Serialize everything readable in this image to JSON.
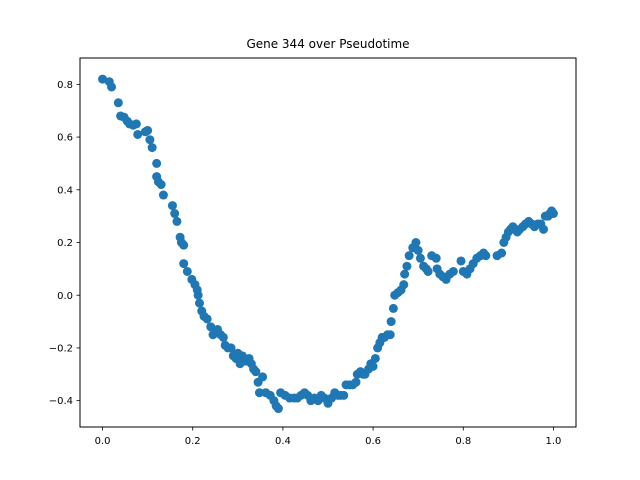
{
  "chart_data": {
    "type": "scatter",
    "title": "Gene 344 over Pseudotime",
    "xlabel": "",
    "ylabel": "",
    "xlim": [
      -0.05,
      1.05
    ],
    "ylim": [
      -0.5,
      0.9
    ],
    "xticks": [
      0.0,
      0.2,
      0.4,
      0.6,
      0.8,
      1.0
    ],
    "xtick_labels": [
      "0.0",
      "0.2",
      "0.4",
      "0.6",
      "0.8",
      "1.0"
    ],
    "yticks": [
      -0.4,
      -0.2,
      0.0,
      0.2,
      0.4,
      0.6,
      0.8
    ],
    "ytick_labels": [
      "−0.4",
      "−0.2",
      "0.0",
      "0.2",
      "0.4",
      "0.6",
      "0.8"
    ],
    "grid": false,
    "legend": "none",
    "marker_color": "#1f77b4",
    "series": [
      {
        "points": [
          [
            0.0,
            0.82
          ],
          [
            0.015,
            0.81
          ],
          [
            0.02,
            0.79
          ],
          [
            0.035,
            0.73
          ],
          [
            0.04,
            0.68
          ],
          [
            0.048,
            0.675
          ],
          [
            0.055,
            0.66
          ],
          [
            0.06,
            0.65
          ],
          [
            0.068,
            0.645
          ],
          [
            0.075,
            0.65
          ],
          [
            0.078,
            0.61
          ],
          [
            0.095,
            0.62
          ],
          [
            0.1,
            0.625
          ],
          [
            0.105,
            0.59
          ],
          [
            0.11,
            0.56
          ],
          [
            0.12,
            0.5
          ],
          [
            0.12,
            0.45
          ],
          [
            0.124,
            0.43
          ],
          [
            0.13,
            0.42
          ],
          [
            0.135,
            0.38
          ],
          [
            0.155,
            0.34
          ],
          [
            0.16,
            0.31
          ],
          [
            0.165,
            0.28
          ],
          [
            0.172,
            0.22
          ],
          [
            0.175,
            0.2
          ],
          [
            0.18,
            0.19
          ],
          [
            0.18,
            0.12
          ],
          [
            0.188,
            0.09
          ],
          [
            0.198,
            0.06
          ],
          [
            0.205,
            0.04
          ],
          [
            0.21,
            0.02
          ],
          [
            0.212,
            0.0
          ],
          [
            0.215,
            -0.03
          ],
          [
            0.22,
            -0.06
          ],
          [
            0.225,
            -0.08
          ],
          [
            0.232,
            -0.09
          ],
          [
            0.24,
            -0.12
          ],
          [
            0.245,
            -0.15
          ],
          [
            0.25,
            -0.14
          ],
          [
            0.255,
            -0.13
          ],
          [
            0.262,
            -0.15
          ],
          [
            0.268,
            -0.16
          ],
          [
            0.272,
            -0.19
          ],
          [
            0.278,
            -0.2
          ],
          [
            0.285,
            -0.2
          ],
          [
            0.29,
            -0.23
          ],
          [
            0.296,
            -0.24
          ],
          [
            0.3,
            -0.22
          ],
          [
            0.305,
            -0.26
          ],
          [
            0.31,
            -0.23
          ],
          [
            0.318,
            -0.25
          ],
          [
            0.325,
            -0.24
          ],
          [
            0.33,
            -0.26
          ],
          [
            0.335,
            -0.28
          ],
          [
            0.34,
            -0.29
          ],
          [
            0.345,
            -0.33
          ],
          [
            0.348,
            -0.37
          ],
          [
            0.355,
            -0.31
          ],
          [
            0.362,
            -0.37
          ],
          [
            0.372,
            -0.38
          ],
          [
            0.38,
            -0.4
          ],
          [
            0.385,
            -0.42
          ],
          [
            0.39,
            -0.43
          ],
          [
            0.395,
            -0.37
          ],
          [
            0.405,
            -0.38
          ],
          [
            0.415,
            -0.39
          ],
          [
            0.425,
            -0.39
          ],
          [
            0.432,
            -0.39
          ],
          [
            0.44,
            -0.38
          ],
          [
            0.448,
            -0.37
          ],
          [
            0.455,
            -0.38
          ],
          [
            0.462,
            -0.4
          ],
          [
            0.47,
            -0.39
          ],
          [
            0.478,
            -0.4
          ],
          [
            0.485,
            -0.38
          ],
          [
            0.492,
            -0.39
          ],
          [
            0.5,
            -0.41
          ],
          [
            0.508,
            -0.39
          ],
          [
            0.515,
            -0.37
          ],
          [
            0.522,
            -0.38
          ],
          [
            0.528,
            -0.38
          ],
          [
            0.535,
            -0.38
          ],
          [
            0.54,
            -0.34
          ],
          [
            0.548,
            -0.34
          ],
          [
            0.555,
            -0.34
          ],
          [
            0.562,
            -0.33
          ],
          [
            0.565,
            -0.3
          ],
          [
            0.572,
            -0.29
          ],
          [
            0.578,
            -0.3
          ],
          [
            0.582,
            -0.3
          ],
          [
            0.59,
            -0.28
          ],
          [
            0.595,
            -0.26
          ],
          [
            0.6,
            -0.27
          ],
          [
            0.605,
            -0.24
          ],
          [
            0.61,
            -0.2
          ],
          [
            0.615,
            -0.18
          ],
          [
            0.62,
            -0.16
          ],
          [
            0.625,
            -0.16
          ],
          [
            0.632,
            -0.15
          ],
          [
            0.638,
            -0.15
          ],
          [
            0.64,
            -0.1
          ],
          [
            0.645,
            -0.05
          ],
          [
            0.648,
            0.0
          ],
          [
            0.655,
            0.01
          ],
          [
            0.662,
            0.02
          ],
          [
            0.668,
            0.04
          ],
          [
            0.67,
            0.08
          ],
          [
            0.675,
            0.11
          ],
          [
            0.68,
            0.15
          ],
          [
            0.688,
            0.18
          ],
          [
            0.695,
            0.2
          ],
          [
            0.7,
            0.17
          ],
          [
            0.705,
            0.14
          ],
          [
            0.712,
            0.11
          ],
          [
            0.718,
            0.1
          ],
          [
            0.722,
            0.09
          ],
          [
            0.73,
            0.15
          ],
          [
            0.74,
            0.14
          ],
          [
            0.742,
            0.1
          ],
          [
            0.748,
            0.08
          ],
          [
            0.755,
            0.07
          ],
          [
            0.762,
            0.06
          ],
          [
            0.77,
            0.08
          ],
          [
            0.778,
            0.09
          ],
          [
            0.795,
            0.13
          ],
          [
            0.8,
            0.09
          ],
          [
            0.808,
            0.08
          ],
          [
            0.815,
            0.1
          ],
          [
            0.822,
            0.12
          ],
          [
            0.83,
            0.14
          ],
          [
            0.838,
            0.15
          ],
          [
            0.845,
            0.16
          ],
          [
            0.85,
            0.15
          ],
          [
            0.875,
            0.15
          ],
          [
            0.885,
            0.16
          ],
          [
            0.89,
            0.2
          ],
          [
            0.895,
            0.22
          ],
          [
            0.9,
            0.24
          ],
          [
            0.905,
            0.25
          ],
          [
            0.91,
            0.26
          ],
          [
            0.915,
            0.25
          ],
          [
            0.92,
            0.24
          ],
          [
            0.925,
            0.25
          ],
          [
            0.932,
            0.26
          ],
          [
            0.938,
            0.27
          ],
          [
            0.945,
            0.28
          ],
          [
            0.952,
            0.27
          ],
          [
            0.958,
            0.26
          ],
          [
            0.965,
            0.27
          ],
          [
            0.972,
            0.27
          ],
          [
            0.978,
            0.25
          ],
          [
            0.982,
            0.3
          ],
          [
            0.988,
            0.3
          ],
          [
            0.992,
            0.31
          ],
          [
            0.996,
            0.32
          ],
          [
            1.0,
            0.31
          ]
        ]
      }
    ]
  }
}
